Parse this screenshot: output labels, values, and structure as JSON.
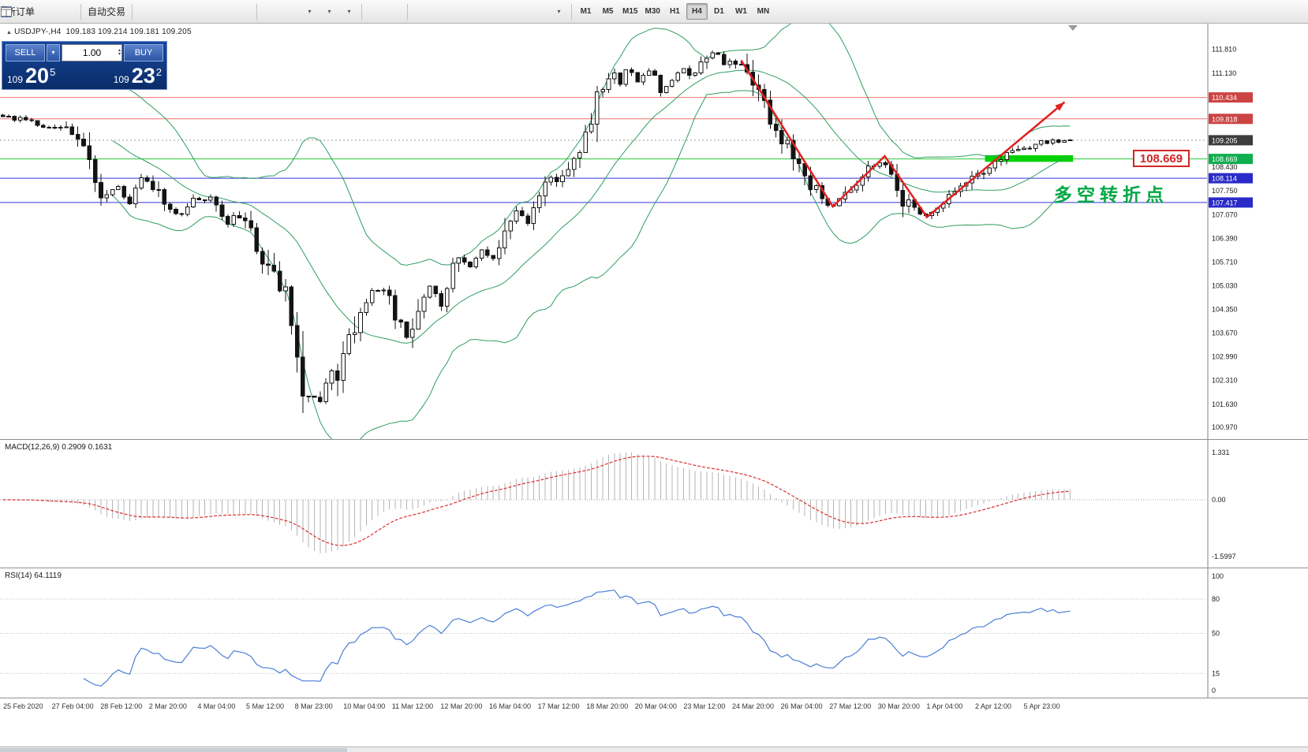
{
  "toolbar": {
    "buttons": [
      {
        "name": "new-order-button",
        "icon": "new-order-icon",
        "label": "新订单"
      },
      {
        "name": "hammer-button",
        "icon": "hammer-icon"
      },
      {
        "name": "chart-window-button",
        "icon": "chart-window-icon"
      },
      {
        "sep": true
      },
      {
        "name": "auto-trading-button",
        "icon": "play-icon",
        "label": "自动交易"
      },
      {
        "sep": true
      },
      {
        "name": "bar-chart-button",
        "icon": "ohlc-bars-icon"
      },
      {
        "name": "candlestick-button",
        "icon": "candlestick-icon"
      },
      {
        "name": "line-chart-button",
        "icon": "line-chart-icon"
      },
      {
        "name": "zoom-in-button",
        "icon": "zoom-in-icon"
      },
      {
        "name": "zoom-out-button",
        "icon": "zoom-out-icon"
      },
      {
        "name": "tile-windows-button",
        "icon": "tile-icon"
      },
      {
        "sep": true
      },
      {
        "name": "cascade-windows-button",
        "icon": "cascade-icon"
      },
      {
        "name": "arrange-windows-button",
        "icon": "arrange-icon"
      },
      {
        "name": "new-chart-button",
        "icon": "new-chart-icon",
        "dropdown": true
      },
      {
        "name": "periods-button",
        "icon": "clock-icon",
        "dropdown": true
      },
      {
        "name": "indicators-button",
        "icon": "indicator-icon",
        "dropdown": true
      },
      {
        "sep": true
      },
      {
        "name": "cursor-button",
        "icon": "cursor-icon"
      },
      {
        "name": "crosshair-button",
        "icon": "crosshair-icon"
      },
      {
        "sep": true
      },
      {
        "name": "vertical-line-button",
        "icon": "vline-icon"
      },
      {
        "name": "horizontal-line-button",
        "icon": "hline-icon"
      },
      {
        "name": "trendline-button",
        "icon": "trendline-icon"
      },
      {
        "name": "channel-button",
        "icon": "channel-icon"
      },
      {
        "name": "fibonacci-button",
        "icon": "fibonacci-icon"
      },
      {
        "name": "shapes-button",
        "icon": "shapes-icon"
      },
      {
        "name": "text-label-button",
        "icon": "text-icon"
      },
      {
        "name": "arrows-button",
        "icon": "arrow-icon",
        "dropdown": true
      },
      {
        "sep": true
      }
    ],
    "timeframes": [
      "M1",
      "M5",
      "M15",
      "M30",
      "H1",
      "H4",
      "D1",
      "W1",
      "MN"
    ],
    "active_timeframe": "H4",
    "right_buttons": [
      {
        "name": "search-button",
        "icon": "search-icon"
      },
      {
        "name": "chart-profile-button",
        "icon": "layout-icon"
      }
    ]
  },
  "chart_header": {
    "marker": "▲",
    "symbol": "USDJPY-,H4",
    "quotes": "109.183 109.214 109.181 109.205"
  },
  "order_panel": {
    "sell_label": "SELL",
    "buy_label": "BUY",
    "volume": "1.00",
    "bid_prefix": "109",
    "bid_big": "20",
    "bid_sup": "5",
    "ask_prefix": "109",
    "ask_big": "23",
    "ask_sup": "2"
  },
  "chart_data": {
    "type": "candlestick",
    "symbol": "USDJPY",
    "timeframe": "H4",
    "ymin": 100.63,
    "ymax": 112.55,
    "candle_count": 186,
    "data_width_frac": 0.889,
    "y_ticks": [
      111.81,
      111.13,
      108.43,
      107.75,
      107.07,
      106.39,
      105.71,
      105.03,
      104.35,
      103.67,
      102.99,
      102.31,
      101.63,
      100.97
    ],
    "levels": [
      {
        "price": 110.434,
        "label": "110.434",
        "tag": "#cc4343",
        "line": "#ef7272"
      },
      {
        "price": 109.818,
        "label": "109.818",
        "tag": "#cc4343",
        "line": "#ef7272"
      },
      {
        "price": 108.669,
        "label": "108.669",
        "tag": "#0fae4e",
        "line": "#2dc937"
      },
      {
        "price": 108.114,
        "label": "108.114",
        "tag": "#2a2ac8",
        "line": "#3434d6"
      },
      {
        "price": 107.417,
        "label": "107.417",
        "tag": "#2a2ac8",
        "line": "#3434d6"
      }
    ],
    "current": {
      "price": 109.205,
      "label": "109.205",
      "tag": "#3d3d3d"
    },
    "bollinger_color": "#2f9e60",
    "zigzag_color": "#e02020",
    "zigzag": [
      [
        0.614,
        111.5
      ],
      [
        0.69,
        107.3
      ],
      [
        0.733,
        108.75
      ],
      [
        0.768,
        107.0
      ],
      [
        0.882,
        110.3
      ]
    ],
    "highlight": {
      "x0": 0.816,
      "x1": 0.889,
      "p0": 108.585,
      "p1": 108.775,
      "color": "#00d300"
    },
    "callout_price": "108.669",
    "annotation": "多空转折点",
    "annotation_color": "#00a844",
    "price_anchors": [
      [
        0,
        109.9
      ],
      [
        0.03,
        109.7
      ],
      [
        0.06,
        109.45
      ],
      [
        0.079,
        108.8
      ],
      [
        0.09,
        107.9
      ],
      [
        0.096,
        107.5
      ],
      [
        0.107,
        107.95
      ],
      [
        0.118,
        107.3
      ],
      [
        0.129,
        108.15
      ],
      [
        0.14,
        107.85
      ],
      [
        0.154,
        107.3
      ],
      [
        0.165,
        107.05
      ],
      [
        0.176,
        107.45
      ],
      [
        0.195,
        107.5
      ],
      [
        0.21,
        106.85
      ],
      [
        0.221,
        107.1
      ],
      [
        0.235,
        106.3
      ],
      [
        0.25,
        105.4
      ],
      [
        0.262,
        104.6
      ],
      [
        0.27,
        104.3
      ],
      [
        0.276,
        102.9
      ],
      [
        0.283,
        102.2
      ],
      [
        0.291,
        101.8
      ],
      [
        0.298,
        101.55
      ],
      [
        0.306,
        102.5
      ],
      [
        0.315,
        102.7
      ],
      [
        0.324,
        103.6
      ],
      [
        0.332,
        104.2
      ],
      [
        0.342,
        104.8
      ],
      [
        0.353,
        104.9
      ],
      [
        0.364,
        104.5
      ],
      [
        0.372,
        103.9
      ],
      [
        0.379,
        103.55
      ],
      [
        0.39,
        104.5
      ],
      [
        0.397,
        105.1
      ],
      [
        0.404,
        104.8
      ],
      [
        0.412,
        104.4
      ],
      [
        0.419,
        105.3
      ],
      [
        0.426,
        105.9
      ],
      [
        0.437,
        105.5
      ],
      [
        0.449,
        106.1
      ],
      [
        0.46,
        105.7
      ],
      [
        0.471,
        106.4
      ],
      [
        0.482,
        107.2
      ],
      [
        0.493,
        106.9
      ],
      [
        0.504,
        107.5
      ],
      [
        0.515,
        108.2
      ],
      [
        0.526,
        108.0
      ],
      [
        0.537,
        108.9
      ],
      [
        0.548,
        109.6
      ],
      [
        0.559,
        110.5
      ],
      [
        0.57,
        111.2
      ],
      [
        0.578,
        110.8
      ],
      [
        0.586,
        111.4
      ],
      [
        0.595,
        110.9
      ],
      [
        0.606,
        111.3
      ],
      [
        0.617,
        110.6
      ],
      [
        0.628,
        110.9
      ],
      [
        0.639,
        111.3
      ],
      [
        0.648,
        111.0
      ],
      [
        0.659,
        111.6
      ],
      [
        0.668,
        111.75
      ],
      [
        0.676,
        111.4
      ],
      [
        0.684,
        111.55
      ],
      [
        0.69,
        111.45
      ],
      [
        0.699,
        110.9
      ],
      [
        0.71,
        110.3
      ],
      [
        0.721,
        109.7
      ],
      [
        0.732,
        109.3
      ],
      [
        0.743,
        108.6
      ],
      [
        0.754,
        108.0
      ],
      [
        0.765,
        107.6
      ],
      [
        0.776,
        107.3
      ],
      [
        0.783,
        107.55
      ],
      [
        0.794,
        107.9
      ],
      [
        0.805,
        108.1
      ],
      [
        0.818,
        108.55
      ],
      [
        0.825,
        108.7
      ],
      [
        0.833,
        108.1
      ],
      [
        0.842,
        107.6
      ],
      [
        0.853,
        107.25
      ],
      [
        0.864,
        107.0
      ],
      [
        0.875,
        107.3
      ],
      [
        0.886,
        107.5
      ],
      [
        0.897,
        107.8
      ],
      [
        0.908,
        108.1
      ],
      [
        0.919,
        108.35
      ],
      [
        0.93,
        108.6
      ],
      [
        0.941,
        108.8
      ],
      [
        0.952,
        108.9
      ],
      [
        0.963,
        109.05
      ],
      [
        0.974,
        109.15
      ],
      [
        1,
        109.2
      ]
    ]
  },
  "macd": {
    "label": "MACD(12,26,9) 0.2909 0.1631",
    "ticks": [
      {
        "v": 1.331,
        "label": "1.331"
      },
      {
        "v": 0,
        "label": "0.00"
      },
      {
        "v": -1.5997,
        "label": "-1.5997"
      }
    ]
  },
  "rsi": {
    "label": "RSI(14) 64.1119",
    "levels": [
      80,
      50,
      15
    ],
    "ticks": [
      {
        "v": 100,
        "label": "100"
      },
      {
        "v": 80,
        "label": "80"
      },
      {
        "v": 50,
        "label": "50"
      },
      {
        "v": 15,
        "label": "15"
      },
      {
        "v": 0,
        "label": "0"
      }
    ]
  },
  "time_axis": [
    "25 Feb 2020",
    "27 Feb 04:00",
    "28 Feb 12:00",
    "2 Mar 20:00",
    "4 Mar 04:00",
    "5 Mar 12:00",
    "8 Mar 23:00",
    "10 Mar 04:00",
    "11 Mar 12:00",
    "12 Mar 20:00",
    "16 Mar 04:00",
    "17 Mar 12:00",
    "18 Mar 20:00",
    "20 Mar 04:00",
    "23 Mar 12:00",
    "24 Mar 20:00",
    "26 Mar 04:00",
    "27 Mar 12:00",
    "30 Mar 20:00",
    "1 Apr 04:00",
    "2 Apr 12:00",
    "5 Apr 23:00"
  ]
}
